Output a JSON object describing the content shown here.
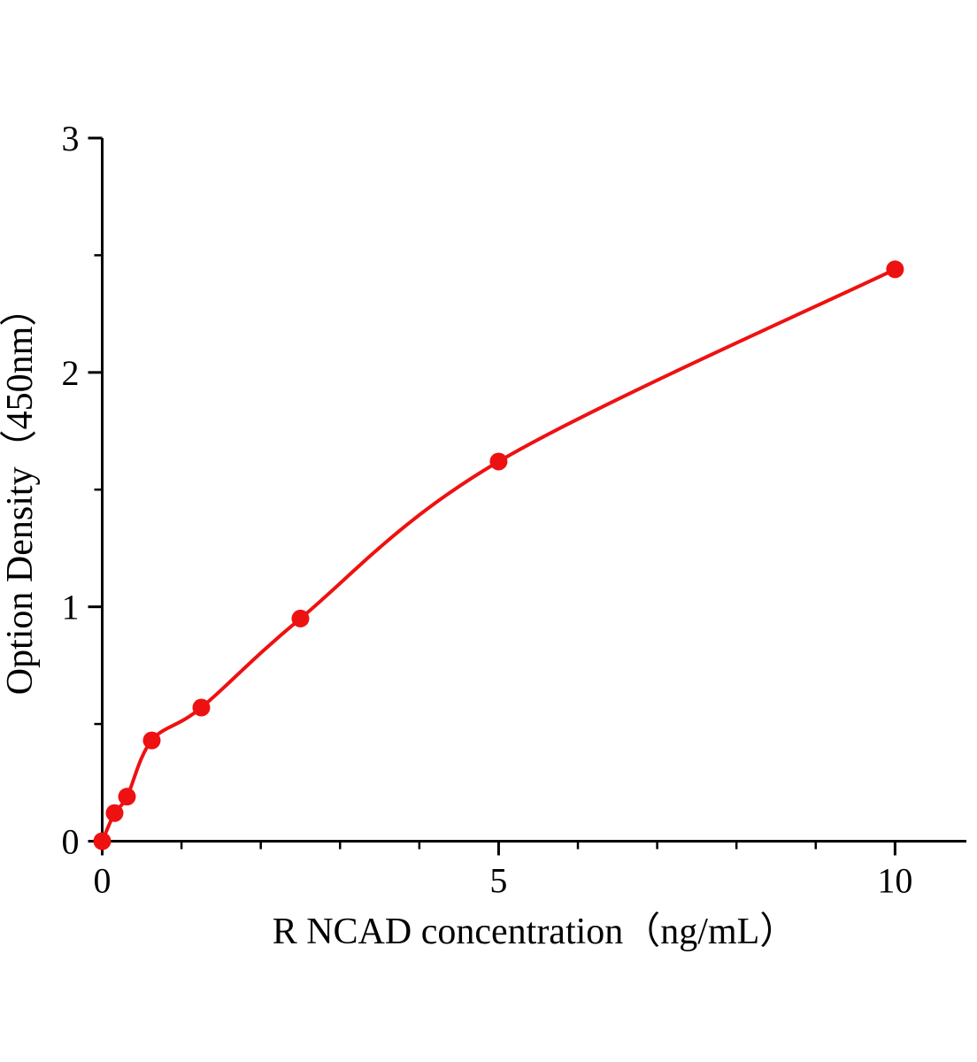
{
  "chart_data": {
    "type": "scatter",
    "title": "",
    "xlabel": "R NCAD concentration（ng/mL）",
    "ylabel": "Option Density（450nm）",
    "x": [
      0,
      0.156,
      0.3125,
      0.625,
      1.25,
      2.5,
      5,
      10
    ],
    "y": [
      0,
      0.12,
      0.19,
      0.43,
      0.57,
      0.95,
      1.62,
      2.44
    ],
    "xlim": [
      0,
      10.9
    ],
    "ylim": [
      0,
      3
    ],
    "x_major_ticks": [
      0,
      5,
      10
    ],
    "x_major_tick_labels": [
      "0",
      "5",
      "10"
    ],
    "x_minor_ticks": [
      1,
      2,
      3,
      4,
      6,
      7,
      8,
      9
    ],
    "y_major_ticks": [
      0,
      1,
      2,
      3
    ],
    "y_major_tick_labels": [
      "0",
      "1",
      "2",
      "3"
    ],
    "y_minor_ticks": [
      0.5,
      1.5,
      2.5
    ],
    "grid": false,
    "legend": "none",
    "line_color": "#ee1111",
    "marker_color": "#ee1111",
    "axis_color": "#000000",
    "marker_radius": 10
  }
}
